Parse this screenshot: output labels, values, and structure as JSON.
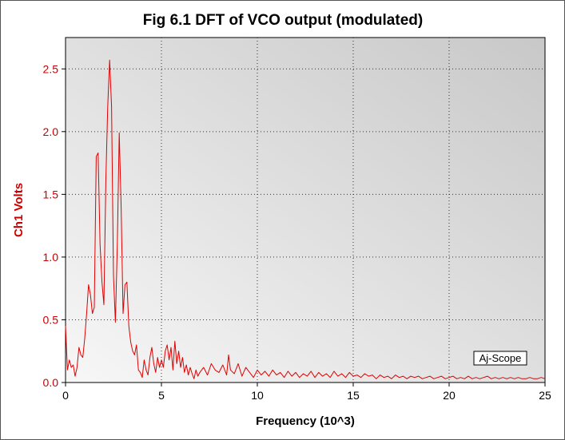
{
  "chart_data": {
    "type": "line",
    "title": "Fig 6.1 DFT of VCO output (modulated)",
    "xlabel": "Frequency (10^3)",
    "ylabel": "Ch1 Volts",
    "xlim": [
      0,
      25
    ],
    "ylim": [
      0,
      2.75
    ],
    "xticks": [
      0,
      5,
      10,
      15,
      20,
      25
    ],
    "xtick_labels": [
      "0",
      "5",
      "10",
      "15",
      "20",
      "25"
    ],
    "yticks": [
      0,
      0.5,
      1.0,
      1.5,
      2.0,
      2.5
    ],
    "ytick_labels": [
      "0.0",
      "0.5",
      "1.0",
      "1.5",
      "2.0",
      "2.5"
    ],
    "grid": true,
    "annotation": "Aj-Scope",
    "colors": {
      "line": "#e00000",
      "ylabel": "#cc0000",
      "ytick": "#cc0000",
      "xtick": "#000000",
      "grid": "#333333",
      "plot_bg_light": "#f7f7f7",
      "plot_bg_dark": "#c8c8c8"
    },
    "series": [
      {
        "x": [
          0.0,
          0.1,
          0.2,
          0.3,
          0.4,
          0.5,
          0.6,
          0.7,
          0.8,
          0.9,
          1.0,
          1.1,
          1.2,
          1.3,
          1.4,
          1.5,
          1.6,
          1.7,
          1.8,
          1.9,
          2.0,
          2.1,
          2.2,
          2.3,
          2.4,
          2.5,
          2.6,
          2.7,
          2.8,
          2.9,
          3.0,
          3.1,
          3.2,
          3.3,
          3.4,
          3.5,
          3.6,
          3.7,
          3.8,
          3.9,
          4.0,
          4.1,
          4.2,
          4.3,
          4.4,
          4.5,
          4.6,
          4.7,
          4.8,
          4.9,
          5.0,
          5.1,
          5.2,
          5.3,
          5.4,
          5.5,
          5.6,
          5.7,
          5.8,
          5.9,
          6.0,
          6.1,
          6.2,
          6.3,
          6.4,
          6.5,
          6.6,
          6.7,
          6.8,
          6.9,
          7.0,
          7.2,
          7.4,
          7.6,
          7.8,
          8.0,
          8.2,
          8.4,
          8.5,
          8.6,
          8.8,
          9.0,
          9.2,
          9.4,
          9.6,
          9.8,
          10.0,
          10.2,
          10.4,
          10.6,
          10.8,
          11.0,
          11.2,
          11.4,
          11.6,
          11.8,
          12.0,
          12.2,
          12.4,
          12.6,
          12.8,
          13.0,
          13.2,
          13.4,
          13.6,
          13.8,
          14.0,
          14.2,
          14.4,
          14.6,
          14.8,
          15.0,
          15.2,
          15.4,
          15.6,
          15.8,
          16.0,
          16.2,
          16.4,
          16.6,
          16.8,
          17.0,
          17.2,
          17.4,
          17.6,
          17.8,
          18.0,
          18.2,
          18.4,
          18.6,
          18.8,
          19.0,
          19.2,
          19.4,
          19.6,
          19.8,
          20.0,
          20.2,
          20.4,
          20.6,
          20.8,
          21.0,
          21.2,
          21.4,
          21.6,
          21.8,
          22.0,
          22.2,
          22.4,
          22.6,
          22.8,
          23.0,
          23.2,
          23.4,
          23.6,
          23.8,
          24.0,
          24.2,
          24.4,
          24.6,
          24.8,
          25.0
        ],
        "y": [
          0.45,
          0.1,
          0.18,
          0.12,
          0.14,
          0.05,
          0.12,
          0.28,
          0.22,
          0.2,
          0.35,
          0.55,
          0.78,
          0.7,
          0.55,
          0.6,
          1.8,
          1.83,
          1.1,
          0.8,
          0.62,
          1.6,
          2.2,
          2.57,
          2.2,
          0.85,
          0.48,
          1.1,
          1.99,
          1.4,
          0.55,
          0.78,
          0.8,
          0.45,
          0.32,
          0.25,
          0.22,
          0.3,
          0.1,
          0.08,
          0.04,
          0.18,
          0.1,
          0.06,
          0.2,
          0.28,
          0.15,
          0.08,
          0.2,
          0.12,
          0.18,
          0.12,
          0.25,
          0.3,
          0.18,
          0.28,
          0.1,
          0.33,
          0.15,
          0.25,
          0.12,
          0.2,
          0.08,
          0.14,
          0.06,
          0.12,
          0.07,
          0.03,
          0.1,
          0.05,
          0.08,
          0.12,
          0.06,
          0.15,
          0.1,
          0.08,
          0.14,
          0.06,
          0.22,
          0.1,
          0.07,
          0.15,
          0.05,
          0.12,
          0.08,
          0.04,
          0.1,
          0.06,
          0.09,
          0.05,
          0.1,
          0.06,
          0.08,
          0.04,
          0.09,
          0.05,
          0.08,
          0.04,
          0.07,
          0.05,
          0.09,
          0.04,
          0.08,
          0.05,
          0.07,
          0.04,
          0.09,
          0.05,
          0.07,
          0.04,
          0.08,
          0.05,
          0.06,
          0.04,
          0.07,
          0.05,
          0.06,
          0.03,
          0.06,
          0.04,
          0.05,
          0.03,
          0.06,
          0.04,
          0.05,
          0.03,
          0.05,
          0.04,
          0.05,
          0.03,
          0.04,
          0.05,
          0.03,
          0.04,
          0.05,
          0.03,
          0.04,
          0.05,
          0.03,
          0.04,
          0.03,
          0.05,
          0.03,
          0.04,
          0.03,
          0.04,
          0.05,
          0.03,
          0.04,
          0.03,
          0.04,
          0.03,
          0.04,
          0.03,
          0.04,
          0.03,
          0.03,
          0.04,
          0.03,
          0.03,
          0.04,
          0.03
        ]
      }
    ]
  }
}
